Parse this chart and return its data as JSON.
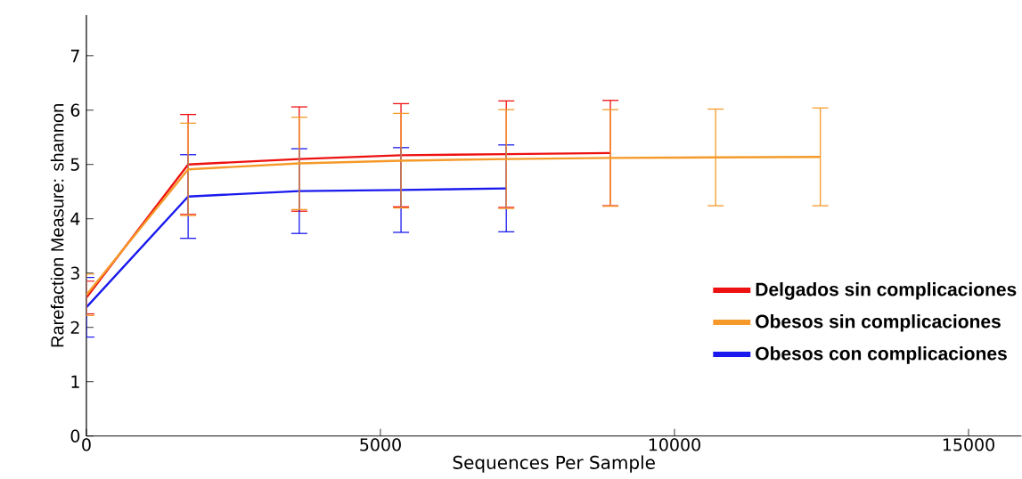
{
  "chart_data": {
    "type": "line",
    "xlabel": "Sequences Per Sample",
    "ylabel": "Rarefaction Measure: shannon",
    "x": [
      0,
      1730,
      3620,
      5350,
      7140,
      8910,
      10700,
      12480
    ],
    "series": [
      {
        "name": "Delgados sin complicaciones",
        "color": "#ee1111",
        "values": [
          2.55,
          5.0,
          5.1,
          5.17,
          5.19,
          5.21,
          null,
          null
        ],
        "errors": [
          0.3,
          0.92,
          0.96,
          0.95,
          0.98,
          0.97,
          null,
          null
        ]
      },
      {
        "name": "Obesos sin complicaciones",
        "color": "#f59a2a",
        "values": [
          2.6,
          4.91,
          5.02,
          5.07,
          5.1,
          5.12,
          5.13,
          5.14
        ],
        "errors": [
          0.38,
          0.85,
          0.85,
          0.87,
          0.91,
          0.89,
          0.89,
          0.9
        ]
      },
      {
        "name": "Obesos con complicaciones",
        "color": "#1a1aee",
        "values": [
          2.37,
          4.41,
          4.51,
          4.53,
          4.56,
          null,
          null,
          null
        ],
        "errors": [
          0.55,
          0.77,
          0.78,
          0.78,
          0.8,
          null,
          null,
          null
        ]
      }
    ],
    "xlim": [
      0,
      15900
    ],
    "ylim": [
      0,
      7.75
    ],
    "xticks": [
      0,
      5000,
      10000,
      15000
    ],
    "yticks": [
      0,
      1,
      2,
      3,
      4,
      5,
      6,
      7
    ],
    "legend": "right"
  }
}
